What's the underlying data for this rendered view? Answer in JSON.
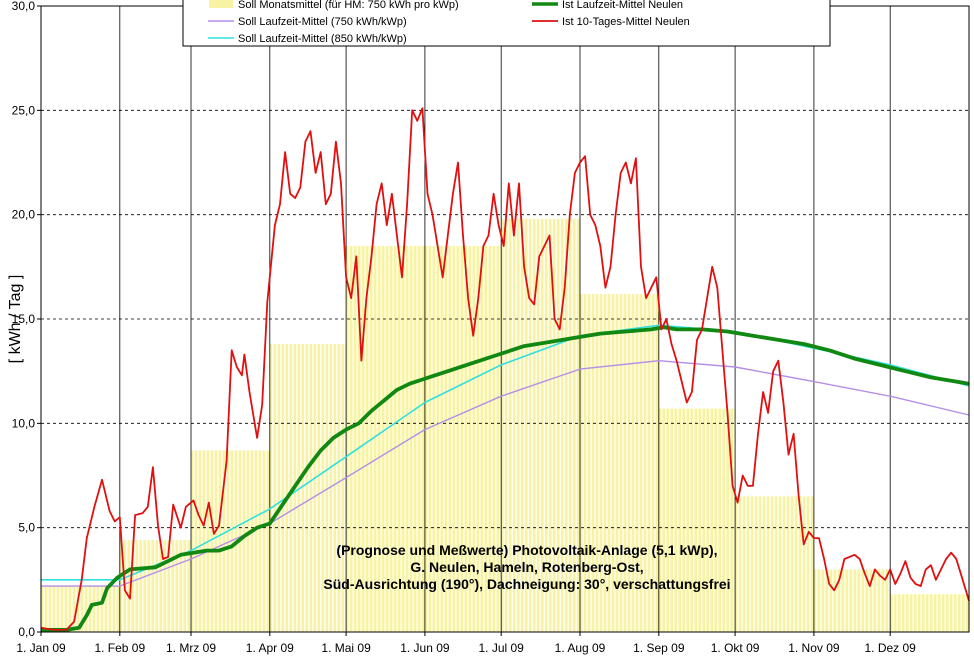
{
  "chart_data": {
    "type": "line",
    "ylabel": "[ kWh / Tag ]",
    "ylim": [
      0,
      30
    ],
    "y_ticks": [
      "0,0",
      "5,0",
      "10,0",
      "15,0",
      "20,0",
      "25,0",
      "30,0"
    ],
    "x_domain_days": [
      0,
      365
    ],
    "x_ticks": [
      "1. Jan 09",
      "1. Feb 09",
      "1. Mrz 09",
      "1. Apr 09",
      "1. Mai 09",
      "1. Jun 09",
      "1. Jul 09",
      "1. Aug 09",
      "1. Sep 09",
      "1. Okt 09",
      "1. Nov 09",
      "1. Dez 09"
    ],
    "x_tick_days": [
      0,
      31,
      59,
      90,
      120,
      151,
      181,
      212,
      243,
      273,
      304,
      334
    ],
    "grid": true,
    "legend_position": "top",
    "info_text": [
      "(Prognose und Meßwerte)  Photovoltaik-Anlage (5,1 kWp),",
      "G. Neulen, Hameln, Rotenberg-Ost,",
      "Süd-Ausrichtung (190°), Dachneigung: 30°, verschattungsfrei"
    ],
    "series": [
      {
        "name": "Soll Monatsmittel (für HM: 750 kWh pro kWp)",
        "type": "bar-monthly",
        "color": "#f7f3a2",
        "values": [
          2.2,
          4.4,
          8.7,
          13.8,
          18.5,
          18.5,
          19.8,
          16.2,
          10.7,
          6.5,
          3.0,
          1.8
        ]
      },
      {
        "name": "Soll Laufzeit-Mittel (750 kWh/kWp)",
        "type": "line",
        "color": "#b48ee8",
        "points": [
          [
            0,
            2.2
          ],
          [
            31,
            2.2
          ],
          [
            59,
            3.5
          ],
          [
            90,
            5.2
          ],
          [
            120,
            7.4
          ],
          [
            151,
            9.7
          ],
          [
            181,
            11.3
          ],
          [
            212,
            12.6
          ],
          [
            243,
            13.0
          ],
          [
            273,
            12.7
          ],
          [
            304,
            12.0
          ],
          [
            334,
            11.3
          ],
          [
            365,
            10.4
          ]
        ]
      },
      {
        "name": "Soll Laufzeit-Mittel (850 kWh/kWp)",
        "type": "line",
        "color": "#30e0e0",
        "points": [
          [
            0,
            2.5
          ],
          [
            31,
            2.5
          ],
          [
            59,
            3.9
          ],
          [
            90,
            5.9
          ],
          [
            120,
            8.4
          ],
          [
            151,
            11.0
          ],
          [
            181,
            12.8
          ],
          [
            212,
            14.2
          ],
          [
            243,
            14.7
          ],
          [
            273,
            14.4
          ],
          [
            304,
            13.6
          ],
          [
            334,
            12.8
          ],
          [
            365,
            11.8
          ]
        ]
      },
      {
        "name": "Ist Laufzeit-Mittel Neulen",
        "type": "line",
        "color": "#118811",
        "points": [
          [
            0,
            0.1
          ],
          [
            10,
            0.1
          ],
          [
            15,
            0.2
          ],
          [
            18,
            0.8
          ],
          [
            20,
            1.3
          ],
          [
            24,
            1.4
          ],
          [
            26,
            2.1
          ],
          [
            30,
            2.6
          ],
          [
            35,
            3.0
          ],
          [
            45,
            3.1
          ],
          [
            50,
            3.4
          ],
          [
            55,
            3.7
          ],
          [
            60,
            3.8
          ],
          [
            65,
            3.9
          ],
          [
            70,
            3.9
          ],
          [
            75,
            4.1
          ],
          [
            80,
            4.6
          ],
          [
            85,
            5.0
          ],
          [
            90,
            5.2
          ],
          [
            95,
            6.1
          ],
          [
            100,
            7.0
          ],
          [
            105,
            7.9
          ],
          [
            110,
            8.7
          ],
          [
            115,
            9.3
          ],
          [
            120,
            9.7
          ],
          [
            125,
            10.0
          ],
          [
            130,
            10.6
          ],
          [
            135,
            11.1
          ],
          [
            140,
            11.6
          ],
          [
            145,
            11.9
          ],
          [
            150,
            12.1
          ],
          [
            155,
            12.3
          ],
          [
            160,
            12.5
          ],
          [
            170,
            12.9
          ],
          [
            180,
            13.3
          ],
          [
            190,
            13.7
          ],
          [
            200,
            13.9
          ],
          [
            210,
            14.1
          ],
          [
            220,
            14.3
          ],
          [
            230,
            14.4
          ],
          [
            240,
            14.5
          ],
          [
            245,
            14.6
          ],
          [
            250,
            14.5
          ],
          [
            260,
            14.5
          ],
          [
            270,
            14.4
          ],
          [
            280,
            14.2
          ],
          [
            290,
            14.0
          ],
          [
            300,
            13.8
          ],
          [
            310,
            13.5
          ],
          [
            320,
            13.1
          ],
          [
            330,
            12.8
          ],
          [
            340,
            12.5
          ],
          [
            350,
            12.2
          ],
          [
            360,
            12.0
          ],
          [
            365,
            11.9
          ]
        ]
      },
      {
        "name": "Ist 10-Tages-Mittel Neulen",
        "type": "line",
        "color": "#e01010",
        "points": [
          [
            0,
            0.2
          ],
          [
            5,
            0.1
          ],
          [
            10,
            0.1
          ],
          [
            13,
            0.5
          ],
          [
            16,
            2.5
          ],
          [
            18,
            4.5
          ],
          [
            21,
            6.0
          ],
          [
            24,
            7.3
          ],
          [
            27,
            5.8
          ],
          [
            29,
            5.3
          ],
          [
            31,
            5.5
          ],
          [
            33,
            2.0
          ],
          [
            35,
            1.6
          ],
          [
            37,
            5.6
          ],
          [
            40,
            5.7
          ],
          [
            42,
            6.0
          ],
          [
            44,
            7.9
          ],
          [
            46,
            5.1
          ],
          [
            48,
            3.5
          ],
          [
            50,
            3.6
          ],
          [
            52,
            6.1
          ],
          [
            55,
            5.0
          ],
          [
            57,
            6.0
          ],
          [
            60,
            6.3
          ],
          [
            62,
            5.6
          ],
          [
            64,
            5.1
          ],
          [
            66,
            6.2
          ],
          [
            68,
            4.7
          ],
          [
            70,
            5.1
          ],
          [
            73,
            8.2
          ],
          [
            75,
            13.5
          ],
          [
            77,
            12.7
          ],
          [
            79,
            12.3
          ],
          [
            80,
            13.3
          ],
          [
            82,
            11.5
          ],
          [
            85,
            9.3
          ],
          [
            87,
            10.9
          ],
          [
            89,
            15.8
          ],
          [
            92,
            19.5
          ],
          [
            94,
            20.5
          ],
          [
            96,
            23.0
          ],
          [
            98,
            21.0
          ],
          [
            100,
            20.8
          ],
          [
            102,
            21.3
          ],
          [
            104,
            23.5
          ],
          [
            106,
            24.0
          ],
          [
            108,
            22.0
          ],
          [
            110,
            23.0
          ],
          [
            112,
            20.5
          ],
          [
            114,
            21.0
          ],
          [
            116,
            23.5
          ],
          [
            118,
            21.5
          ],
          [
            120,
            17.0
          ],
          [
            122,
            16.0
          ],
          [
            124,
            18.0
          ],
          [
            126,
            13.0
          ],
          [
            128,
            16.0
          ],
          [
            130,
            18.0
          ],
          [
            132,
            20.5
          ],
          [
            134,
            21.5
          ],
          [
            136,
            19.5
          ],
          [
            138,
            21.0
          ],
          [
            140,
            19.0
          ],
          [
            142,
            17.0
          ],
          [
            144,
            20.5
          ],
          [
            146,
            25.0
          ],
          [
            148,
            24.5
          ],
          [
            150,
            25.1
          ],
          [
            152,
            21.0
          ],
          [
            154,
            20.0
          ],
          [
            156,
            18.5
          ],
          [
            158,
            17.0
          ],
          [
            160,
            19.0
          ],
          [
            162,
            21.0
          ],
          [
            164,
            22.5
          ],
          [
            166,
            19.0
          ],
          [
            168,
            16.0
          ],
          [
            170,
            14.2
          ],
          [
            172,
            16.0
          ],
          [
            174,
            18.5
          ],
          [
            176,
            19.0
          ],
          [
            178,
            21.0
          ],
          [
            180,
            19.5
          ],
          [
            182,
            18.5
          ],
          [
            184,
            21.5
          ],
          [
            186,
            19.0
          ],
          [
            188,
            21.5
          ],
          [
            190,
            17.5
          ],
          [
            192,
            16.0
          ],
          [
            194,
            15.7
          ],
          [
            196,
            18.0
          ],
          [
            198,
            18.5
          ],
          [
            200,
            19.0
          ],
          [
            202,
            15.0
          ],
          [
            204,
            14.5
          ],
          [
            206,
            16.5
          ],
          [
            208,
            20.0
          ],
          [
            210,
            22.0
          ],
          [
            212,
            22.5
          ],
          [
            214,
            22.8
          ],
          [
            216,
            20.0
          ],
          [
            218,
            19.5
          ],
          [
            220,
            18.5
          ],
          [
            222,
            16.5
          ],
          [
            224,
            17.5
          ],
          [
            226,
            20.0
          ],
          [
            228,
            22.0
          ],
          [
            230,
            22.5
          ],
          [
            232,
            21.5
          ],
          [
            234,
            22.7
          ],
          [
            236,
            17.5
          ],
          [
            238,
            16.0
          ],
          [
            240,
            16.5
          ],
          [
            242,
            17.0
          ],
          [
            244,
            14.5
          ],
          [
            246,
            15.0
          ],
          [
            248,
            13.8
          ],
          [
            250,
            13.0
          ],
          [
            252,
            12.0
          ],
          [
            254,
            11.0
          ],
          [
            256,
            11.5
          ],
          [
            258,
            14.0
          ],
          [
            260,
            14.5
          ],
          [
            262,
            16.0
          ],
          [
            264,
            17.5
          ],
          [
            266,
            16.5
          ],
          [
            268,
            13.5
          ],
          [
            270,
            10.5
          ],
          [
            272,
            7.0
          ],
          [
            274,
            6.2
          ],
          [
            276,
            7.5
          ],
          [
            278,
            7.0
          ],
          [
            280,
            7.0
          ],
          [
            282,
            9.5
          ],
          [
            284,
            11.5
          ],
          [
            286,
            10.5
          ],
          [
            288,
            12.5
          ],
          [
            290,
            13.0
          ],
          [
            292,
            11.0
          ],
          [
            294,
            8.5
          ],
          [
            296,
            9.5
          ],
          [
            298,
            6.5
          ],
          [
            300,
            4.2
          ],
          [
            302,
            4.8
          ],
          [
            304,
            4.5
          ],
          [
            306,
            4.5
          ],
          [
            308,
            3.5
          ],
          [
            310,
            2.3
          ],
          [
            312,
            2.0
          ],
          [
            314,
            2.5
          ],
          [
            316,
            3.5
          ],
          [
            318,
            3.6
          ],
          [
            320,
            3.7
          ],
          [
            322,
            3.5
          ],
          [
            324,
            2.8
          ],
          [
            326,
            2.2
          ],
          [
            328,
            3.0
          ],
          [
            330,
            2.7
          ],
          [
            332,
            2.5
          ],
          [
            334,
            3.0
          ],
          [
            336,
            2.3
          ],
          [
            338,
            2.8
          ],
          [
            340,
            3.4
          ],
          [
            342,
            2.6
          ],
          [
            344,
            2.3
          ],
          [
            346,
            2.2
          ],
          [
            348,
            3.0
          ],
          [
            350,
            3.2
          ],
          [
            352,
            2.5
          ],
          [
            354,
            3.0
          ],
          [
            356,
            3.5
          ],
          [
            358,
            3.8
          ],
          [
            360,
            3.5
          ],
          [
            362,
            2.7
          ],
          [
            365,
            1.5
          ]
        ]
      }
    ]
  }
}
